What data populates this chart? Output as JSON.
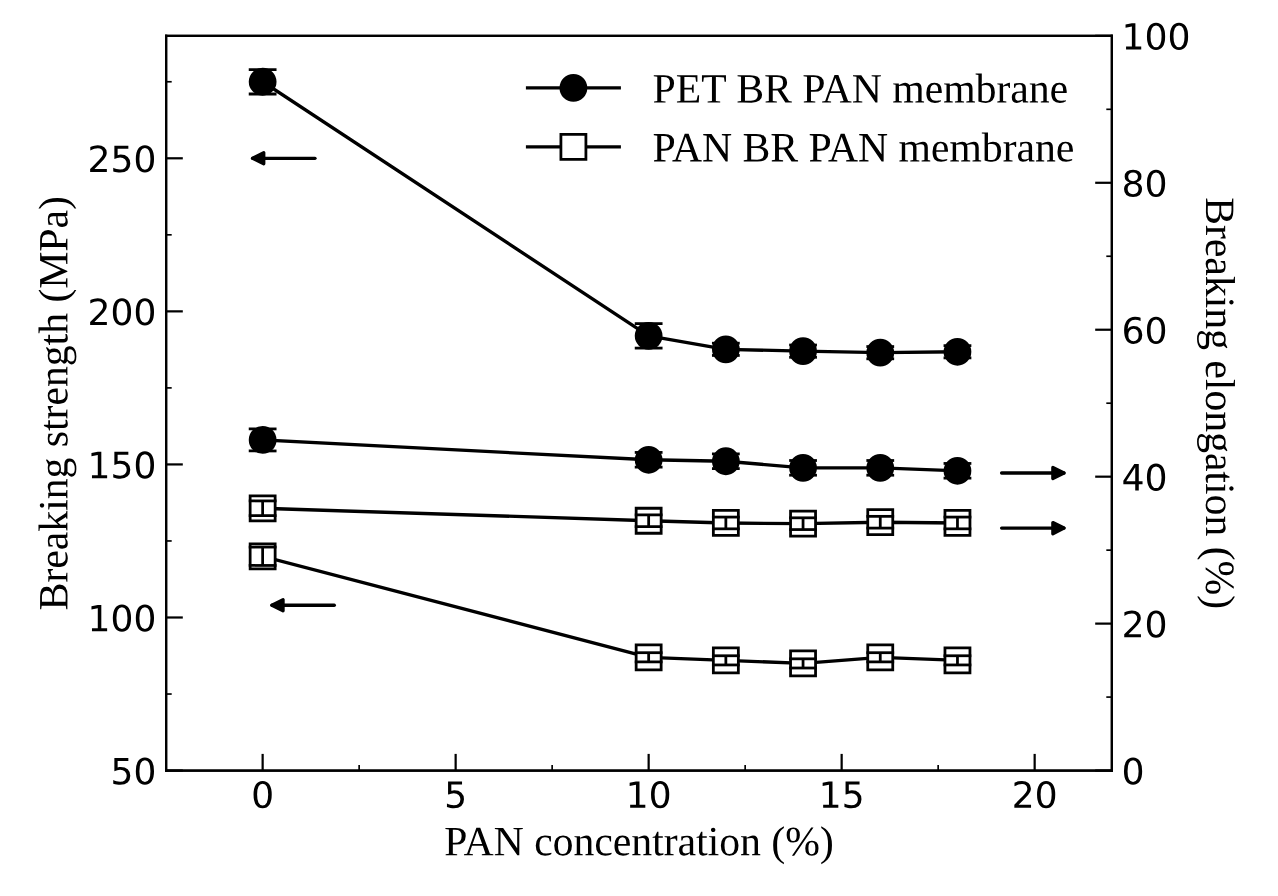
{
  "chart_data": {
    "type": "line",
    "xlabel": "PAN concentration (%)",
    "ylabel": "Breaking strength (MPa)",
    "y2label": "Breaking elongation (%)",
    "x": [
      0,
      10,
      12,
      14,
      16,
      18
    ],
    "xlim": [
      -2.5,
      22
    ],
    "xticks": [
      0,
      5,
      10,
      15,
      20
    ],
    "ylim": [
      50,
      290
    ],
    "yticks": [
      50,
      100,
      150,
      200,
      250
    ],
    "y2lim": [
      0,
      100
    ],
    "y2ticks": [
      0,
      20,
      40,
      60,
      80,
      100
    ],
    "grid": false,
    "legend": "top right",
    "line_style": "solid",
    "series": [
      {
        "name": "PET BR PAN membrane",
        "color": "#000000",
        "marker": "circle",
        "values": [
          275,
          192,
          187.6,
          187,
          186.5,
          186.8
        ],
        "errors": [
          4,
          4,
          2,
          2,
          2,
          2
        ]
      },
      {
        "name": "PAN BR PAN membrane",
        "color": "#000000",
        "marker": "square",
        "values": [
          120,
          87,
          86,
          85,
          87,
          86
        ],
        "errors": [
          3,
          1.5,
          1.5,
          1.5,
          1.5,
          1.5
        ]
      },
      {
        "color": "#000000",
        "marker": "circle",
        "axis": "y2",
        "values": [
          45.0,
          42.3,
          42.1,
          41.2,
          41.2,
          40.8
        ],
        "errors": [
          1.5,
          1,
          1,
          1,
          1,
          1
        ]
      },
      {
        "color": "#000000",
        "marker": "square",
        "axis": "y2",
        "values": [
          35.7,
          34.0,
          33.7,
          33.6,
          33.8,
          33.7
        ],
        "errors": [
          1,
          0.8,
          0.8,
          0.8,
          0.8,
          0.8
        ]
      }
    ]
  }
}
